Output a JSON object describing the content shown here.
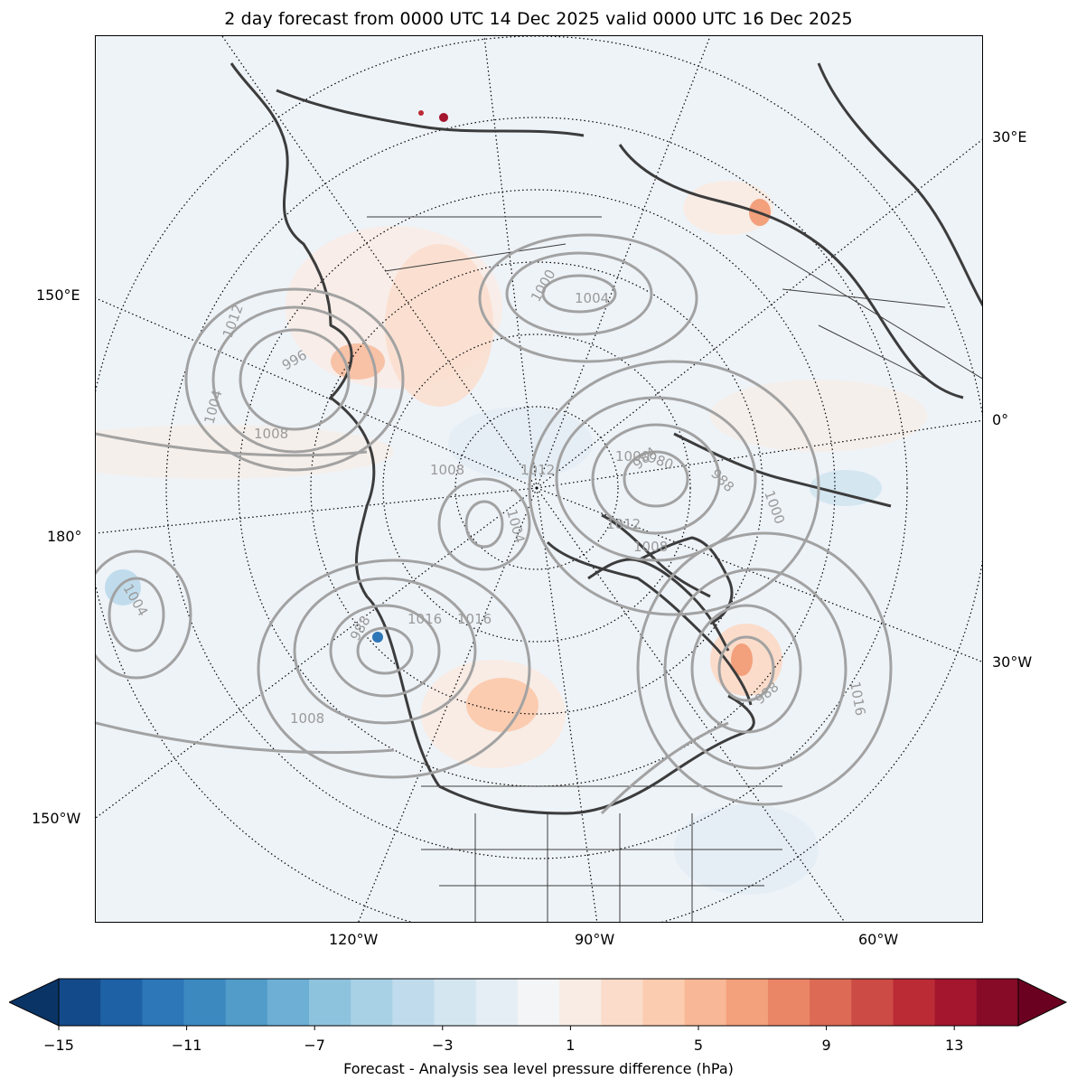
{
  "title": "2 day forecast from 0000 UTC 14 Dec 2025 valid 0000 UTC 16 Dec 2025",
  "longitude_labels": {
    "e30": "30°E",
    "e150": "150°E",
    "zero": "0°",
    "lon180": "180°",
    "w30": "30°W",
    "w150": "150°W",
    "w120": "120°W",
    "w90": "90°W",
    "w60": "60°W"
  },
  "isobar_labels": [
    "1012",
    "996",
    "1004",
    "1008",
    "1000",
    "1004",
    "1008",
    "1012",
    "1004",
    "1000",
    "984",
    "980",
    "988",
    "1012",
    "1008",
    "988",
    "1016",
    "1016",
    "1008",
    "1004",
    "1016",
    "1000",
    "988"
  ],
  "colorbar": {
    "label": "Forecast - Analysis sea level pressure difference (hPa)",
    "ticks": [
      "−15",
      "−11",
      "−7",
      "−3",
      "1",
      "5",
      "9",
      "13"
    ],
    "colors": [
      "#0b3466",
      "#134a8a",
      "#1e61a5",
      "#2d76b7",
      "#3c89c0",
      "#519cc8",
      "#6dafd5",
      "#8ec3de",
      "#a9d1e6",
      "#c0dcec",
      "#d4e6f0",
      "#e5eef5",
      "#f3f5f7",
      "#f8ece5",
      "#fbdcca",
      "#fbccb0",
      "#f8b796",
      "#f3a07c",
      "#ea8566",
      "#dd6a55",
      "#cc4b45",
      "#bb2b36",
      "#a4152e",
      "#870a27",
      "#6b0120"
    ]
  }
}
